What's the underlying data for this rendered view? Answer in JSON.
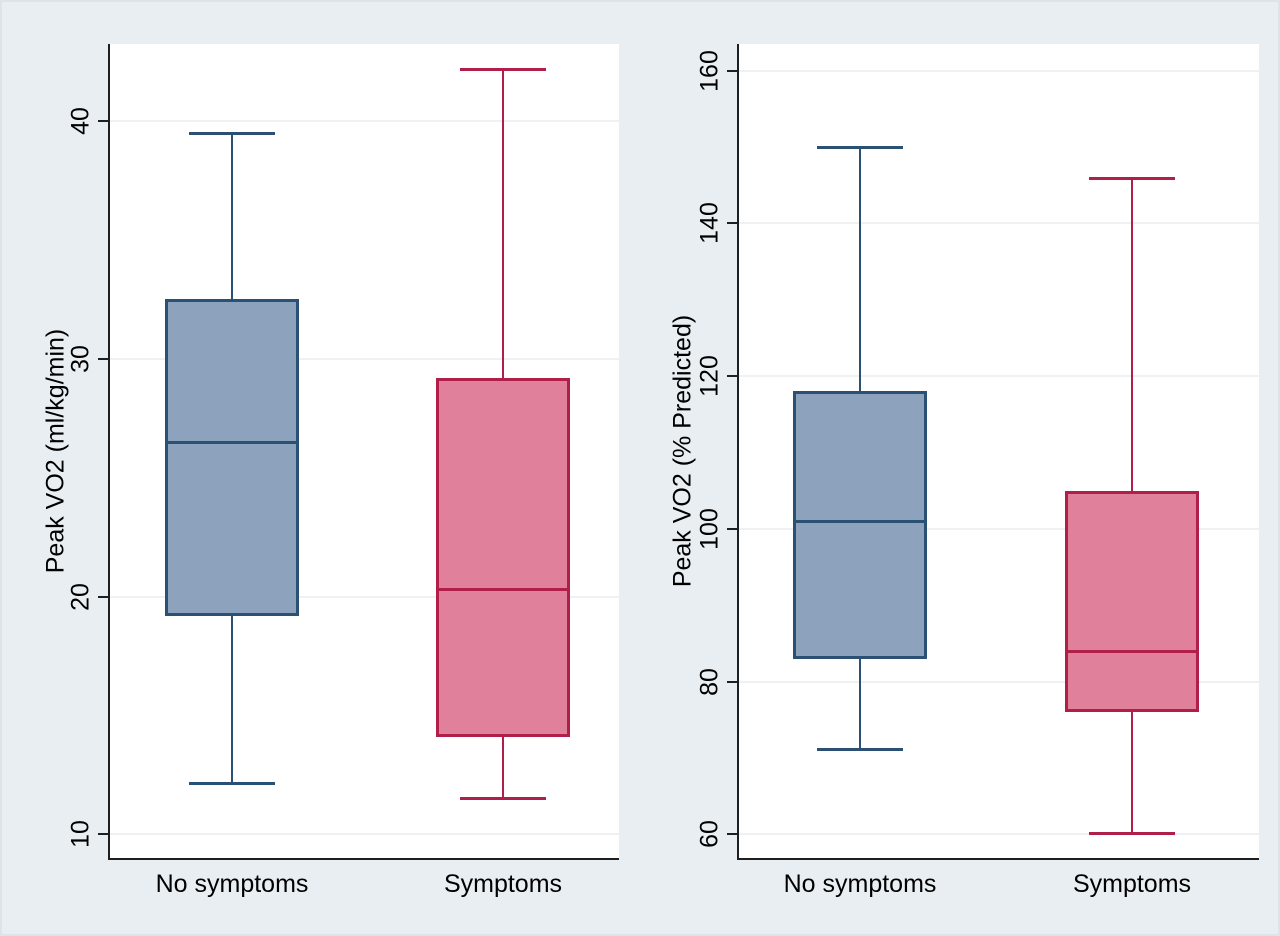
{
  "figure": {
    "background_color": "#e8eef2",
    "plot_background_color": "#ffffff",
    "grid_color": "#eef2f5",
    "axis_color": "#1f1f1f",
    "text_color": "#000000"
  },
  "chart_data": [
    {
      "type": "boxplot",
      "title": "",
      "xlabel": "",
      "ylabel": "Peak VO2 (ml/kg/min)",
      "categories": [
        "No symptoms",
        "Symptoms"
      ],
      "yticks": [
        10,
        20,
        30,
        40
      ],
      "ylim": [
        9.0,
        43.25
      ],
      "grid": true,
      "series": [
        {
          "name": "No symptoms",
          "min": 12.1,
          "q1": 19.2,
          "median": 26.5,
          "q3": 32.5,
          "max": 39.5,
          "fill": "#8da3bd",
          "stroke": "#2a5173"
        },
        {
          "name": "Symptoms",
          "min": 11.5,
          "q1": 14.1,
          "median": 20.3,
          "q3": 29.2,
          "max": 42.2,
          "fill": "#e0809b",
          "stroke": "#b01e4a"
        }
      ]
    },
    {
      "type": "boxplot",
      "title": "",
      "xlabel": "",
      "ylabel": "Peak VO2 (% Predicted)",
      "categories": [
        "No symptoms",
        "Symptoms"
      ],
      "yticks": [
        60,
        80,
        100,
        120,
        140,
        160
      ],
      "ylim": [
        56.9,
        163.5
      ],
      "grid": true,
      "series": [
        {
          "name": "No symptoms",
          "min": 71,
          "q1": 83,
          "median": 101,
          "q3": 118,
          "max": 150,
          "fill": "#8da3bd",
          "stroke": "#2a5173"
        },
        {
          "name": "Symptoms",
          "min": 60,
          "q1": 76,
          "median": 84,
          "q3": 105,
          "max": 146,
          "fill": "#e0809b",
          "stroke": "#b01e4a"
        }
      ]
    }
  ]
}
